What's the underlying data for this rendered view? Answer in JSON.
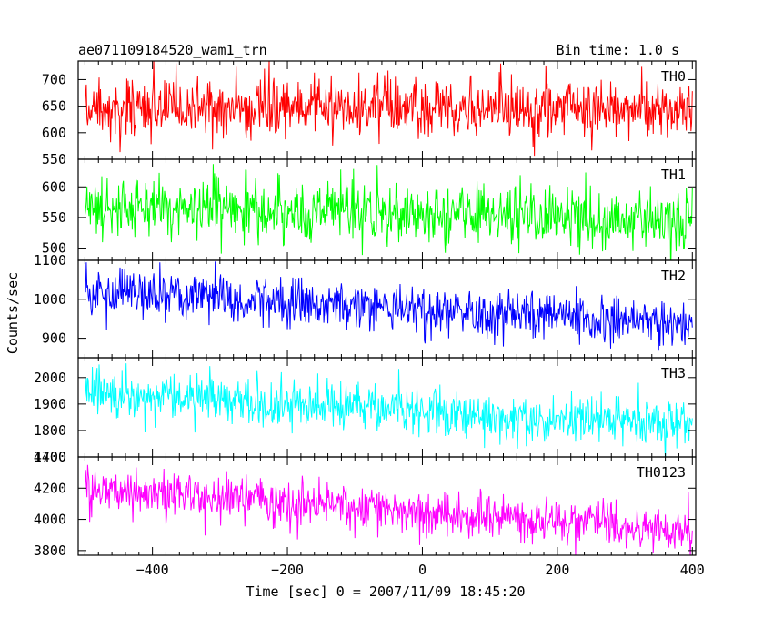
{
  "chart_data": {
    "type": "line",
    "title_left": "ae071109184520_wam1_trn",
    "title_right": "Bin time: 1.0 s",
    "xlabel": "Time [sec] 0 = 2007/11/09 18:45:20",
    "ylabel": "Counts/sec",
    "xlim": [
      -510,
      405
    ],
    "x_ticks": [
      -400,
      -200,
      0,
      200,
      400
    ],
    "x_tick_labels": [
      "−400",
      "−200",
      "0",
      "200",
      "400"
    ],
    "x_data_range": [
      -500,
      400
    ],
    "bin_time_s": 1.0,
    "grid": false,
    "panels": [
      {
        "name": "TH0",
        "color": "#ff0000",
        "ylim": [
          550,
          735
        ],
        "y_ticks": [
          550,
          600,
          650,
          700
        ],
        "mean_start": 650,
        "mean_end": 645,
        "spread": 28
      },
      {
        "name": "TH1",
        "color": "#00ff00",
        "ylim": [
          480,
          645
        ],
        "y_ticks": [
          500,
          550,
          600
        ],
        "mean_start": 570,
        "mean_end": 545,
        "spread": 25
      },
      {
        "name": "TH2",
        "color": "#0000ff",
        "ylim": [
          850,
          1100
        ],
        "y_ticks": [
          900,
          1000,
          1100
        ],
        "mean_start": 1020,
        "mean_end": 935,
        "spread": 32
      },
      {
        "name": "TH3",
        "color": "#00ffff",
        "ylim": [
          1700,
          2075
        ],
        "y_ticks": [
          1700,
          1800,
          1900,
          2000
        ],
        "mean_start": 1945,
        "mean_end": 1815,
        "spread": 45
      },
      {
        "name": "TH0123",
        "color": "#ff00ff",
        "ylim": [
          3770,
          4400
        ],
        "y_ticks": [
          3800,
          4000,
          4200,
          4400
        ],
        "mean_start": 4200,
        "mean_end": 3930,
        "spread": 75
      }
    ]
  }
}
